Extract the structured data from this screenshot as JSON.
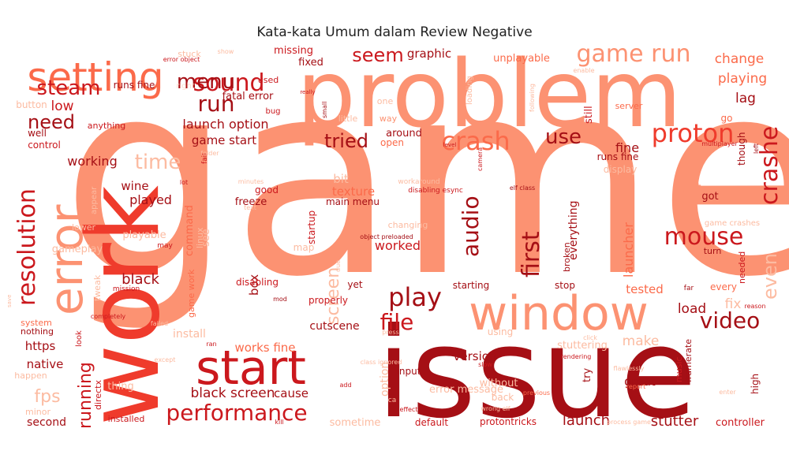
{
  "title": "Kata-kata Umum dalam Review Negative",
  "palette": {
    "darkest": "#a50f15",
    "dark": "#cb181d",
    "red": "#ef3b2c",
    "coral": "#fb6a4a",
    "salmon": "#fc9272",
    "light": "#fcbba1",
    "pale": "#fee0d2"
  },
  "words": [
    {
      "text": "game",
      "tone": "salmon"
    },
    {
      "text": "issue",
      "tone": "darkest"
    },
    {
      "text": "problem",
      "tone": "salmon"
    },
    {
      "text": "work",
      "tone": "red"
    },
    {
      "text": "window",
      "tone": "salmon"
    },
    {
      "text": "error",
      "tone": "salmon"
    },
    {
      "text": "start",
      "tone": "dark"
    },
    {
      "text": "setting",
      "tone": "coral"
    },
    {
      "text": "game run",
      "tone": "salmon"
    },
    {
      "text": "crash",
      "tone": "coral"
    },
    {
      "text": "proton",
      "tone": "red"
    },
    {
      "text": "performance",
      "tone": "dark"
    },
    {
      "text": "crashe",
      "tone": "dark"
    },
    {
      "text": "sound",
      "tone": "dark"
    },
    {
      "text": "resolution",
      "tone": "dark"
    },
    {
      "text": "mouse",
      "tone": "dark"
    },
    {
      "text": "play",
      "tone": "darkest"
    },
    {
      "text": "video",
      "tone": "darkest"
    },
    {
      "text": "file",
      "tone": "dark"
    },
    {
      "text": "run",
      "tone": "darkest"
    },
    {
      "text": "first",
      "tone": "darkest"
    },
    {
      "text": "audio",
      "tone": "darkest"
    },
    {
      "text": "menu",
      "tone": "darkest"
    },
    {
      "text": "steam",
      "tone": "dark"
    },
    {
      "text": "need",
      "tone": "darkest"
    },
    {
      "text": "time",
      "tone": "light"
    },
    {
      "text": "seem",
      "tone": "dark"
    },
    {
      "text": "tried",
      "tone": "darkest"
    },
    {
      "text": "use",
      "tone": "darkest"
    },
    {
      "text": "screen",
      "tone": "light"
    },
    {
      "text": "running",
      "tone": "dark"
    },
    {
      "text": "fps",
      "tone": "light"
    },
    {
      "text": "even",
      "tone": "light"
    },
    {
      "text": "black screen",
      "tone": "darkest"
    },
    {
      "text": "works fine",
      "tone": "coral"
    },
    {
      "text": "worked",
      "tone": "dark"
    },
    {
      "text": "launch option",
      "tone": "darkest"
    },
    {
      "text": "launch",
      "tone": "darkest"
    },
    {
      "text": "stutter",
      "tone": "darkest"
    },
    {
      "text": "version",
      "tone": "darkest"
    },
    {
      "text": "change",
      "tone": "coral"
    },
    {
      "text": "playing",
      "tone": "coral"
    },
    {
      "text": "lag",
      "tone": "darkest"
    },
    {
      "text": "fine",
      "tone": "darkest"
    },
    {
      "text": "load",
      "tone": "darkest"
    },
    {
      "text": "fix",
      "tone": "light"
    },
    {
      "text": "tested",
      "tone": "coral"
    },
    {
      "text": "make",
      "tone": "light"
    },
    {
      "text": "great",
      "tone": "darkest"
    },
    {
      "text": "graphic",
      "tone": "darkest"
    },
    {
      "text": "unplayable",
      "tone": "coral"
    },
    {
      "text": "low",
      "tone": "dark"
    },
    {
      "text": "game start",
      "tone": "darkest"
    },
    {
      "text": "working",
      "tone": "darkest"
    },
    {
      "text": "wine",
      "tone": "darkest"
    },
    {
      "text": "played",
      "tone": "darkest"
    },
    {
      "text": "black",
      "tone": "darkest"
    },
    {
      "text": "https",
      "tone": "darkest"
    },
    {
      "text": "native",
      "tone": "darkest"
    },
    {
      "text": "second",
      "tone": "darkest"
    },
    {
      "text": "cause",
      "tone": "darkest"
    },
    {
      "text": "cutscene",
      "tone": "darkest"
    },
    {
      "text": "texture",
      "tone": "coral"
    },
    {
      "text": "main menu",
      "tone": "darkest"
    },
    {
      "text": "box",
      "tone": "darkest"
    },
    {
      "text": "freeze",
      "tone": "darkest"
    },
    {
      "text": "good",
      "tone": "dark"
    },
    {
      "text": "bit",
      "tone": "light"
    },
    {
      "text": "set",
      "tone": "salmon"
    },
    {
      "text": "got",
      "tone": "darkest"
    },
    {
      "text": "launcher",
      "tone": "coral"
    },
    {
      "text": "everything",
      "tone": "darkest"
    },
    {
      "text": "option",
      "tone": "light"
    },
    {
      "text": "input",
      "tone": "darkest"
    },
    {
      "text": "around",
      "tone": "darkest"
    },
    {
      "text": "open",
      "tone": "coral"
    },
    {
      "text": "fixed",
      "tone": "darkest"
    },
    {
      "text": "missing",
      "tone": "dark"
    },
    {
      "text": "fatal error",
      "tone": "darkest"
    },
    {
      "text": "command",
      "tone": "coral"
    },
    {
      "text": "playable",
      "tone": "light"
    },
    {
      "text": "controller",
      "tone": "dark"
    },
    {
      "text": "default",
      "tone": "dark"
    },
    {
      "text": "sometime",
      "tone": "light"
    },
    {
      "text": "protontricks",
      "tone": "dark"
    },
    {
      "text": "still",
      "tone": "dark"
    },
    {
      "text": "runs fine",
      "tone": "darkest"
    },
    {
      "text": "display",
      "tone": "light"
    },
    {
      "text": "go",
      "tone": "coral"
    },
    {
      "text": "though",
      "tone": "darkest"
    },
    {
      "text": "server",
      "tone": "coral"
    },
    {
      "text": "button",
      "tone": "light"
    },
    {
      "text": "well",
      "tone": "darkest"
    },
    {
      "text": "control",
      "tone": "dark"
    },
    {
      "text": "anything",
      "tone": "dark"
    },
    {
      "text": "stuck",
      "tone": "light"
    },
    {
      "text": "used",
      "tone": "dark"
    },
    {
      "text": "lower",
      "tone": "light"
    },
    {
      "text": "system",
      "tone": "coral"
    },
    {
      "text": "nothing",
      "tone": "darkest"
    },
    {
      "text": "happen",
      "tone": "light"
    },
    {
      "text": "minor",
      "tone": "light"
    },
    {
      "text": "directx",
      "tone": "dark"
    },
    {
      "text": "installed",
      "tone": "dark"
    },
    {
      "text": "yet",
      "tone": "darkest"
    },
    {
      "text": "stop",
      "tone": "darkest"
    },
    {
      "text": "starting",
      "tone": "darkest"
    },
    {
      "text": "disabling",
      "tone": "dark"
    },
    {
      "text": "linux",
      "tone": "light"
    },
    {
      "text": "turn",
      "tone": "darkest"
    },
    {
      "text": "broken",
      "tone": "darkest"
    },
    {
      "text": "needed",
      "tone": "dark"
    },
    {
      "text": "music",
      "tone": "dark"
    },
    {
      "text": "framerate",
      "tone": "darkest"
    },
    {
      "text": "stuttering",
      "tone": "light"
    },
    {
      "text": "try",
      "tone": "darkest"
    },
    {
      "text": "back",
      "tone": "light"
    },
    {
      "text": "high",
      "tone": "darkest"
    },
    {
      "text": "using",
      "tone": "light"
    },
    {
      "text": "every",
      "tone": "coral"
    },
    {
      "text": "far",
      "tone": "darkest"
    },
    {
      "text": "properly",
      "tone": "dark"
    },
    {
      "text": "little",
      "tone": "light"
    },
    {
      "text": "way",
      "tone": "salmon"
    },
    {
      "text": "loading",
      "tone": "light"
    },
    {
      "text": "changing",
      "tone": "light"
    },
    {
      "text": "map",
      "tone": "light"
    },
    {
      "text": "tweak",
      "tone": "light"
    },
    {
      "text": "gameplay",
      "tone": "light"
    },
    {
      "text": "install",
      "tone": "light"
    },
    {
      "text": "see",
      "tone": "light"
    },
    {
      "text": "one",
      "tone": "light"
    },
    {
      "text": "appear",
      "tone": "light"
    },
    {
      "text": "startup",
      "tone": "dark"
    },
    {
      "text": "game work",
      "tone": "coral"
    },
    {
      "text": "game crashes",
      "tone": "light"
    },
    {
      "text": "error message",
      "tone": "light"
    },
    {
      "text": "without",
      "tone": "light"
    },
    {
      "text": "ca",
      "tone": "light"
    },
    {
      "text": "runs fine",
      "tone": "darkest"
    },
    {
      "text": "right",
      "tone": "pale"
    },
    {
      "text": "bug",
      "tone": "dark"
    },
    {
      "text": "show",
      "tone": "light"
    },
    {
      "text": "error object",
      "tone": "dark"
    },
    {
      "text": "really",
      "tone": "dark"
    },
    {
      "text": "small",
      "tone": "darkest"
    },
    {
      "text": "following",
      "tone": "light"
    },
    {
      "text": "enable",
      "tone": "light"
    },
    {
      "text": "level",
      "tone": "dark"
    },
    {
      "text": "camera",
      "tone": "dark"
    },
    {
      "text": "fail",
      "tone": "dark"
    },
    {
      "text": "folder",
      "tone": "light"
    },
    {
      "text": "lot",
      "tone": "dark"
    },
    {
      "text": "minutes",
      "tone": "light"
    },
    {
      "text": "workaround",
      "tone": "light"
    },
    {
      "text": "disabling esync",
      "tone": "dark"
    },
    {
      "text": "elf class",
      "tone": "darkest"
    },
    {
      "text": "text",
      "tone": "light"
    },
    {
      "text": "left",
      "tone": "darkest"
    },
    {
      "text": "multiplayer",
      "tone": "dark"
    },
    {
      "text": "may",
      "tone": "dark"
    },
    {
      "text": "due",
      "tone": "light"
    },
    {
      "text": "object preloaded",
      "tone": "darkest"
    },
    {
      "text": "mod",
      "tone": "darkest"
    },
    {
      "text": "add",
      "tone": "dark"
    },
    {
      "text": "mission",
      "tone": "dark"
    },
    {
      "text": "failed",
      "tone": "light"
    },
    {
      "text": "completely",
      "tone": "dark"
    },
    {
      "text": "ran",
      "tone": "dark"
    },
    {
      "text": "except",
      "tone": "light"
    },
    {
      "text": "press",
      "tone": "light"
    },
    {
      "text": "class ignored",
      "tone": "light"
    },
    {
      "text": "slow",
      "tone": "dark"
    },
    {
      "text": "rendering",
      "tone": "dark"
    },
    {
      "text": "flawlessly",
      "tone": "light"
    },
    {
      "text": "report",
      "tone": "coral"
    },
    {
      "text": "enter",
      "tone": "light"
    },
    {
      "text": "reason",
      "tone": "dark"
    },
    {
      "text": "previous",
      "tone": "coral"
    },
    {
      "text": "wrong elf",
      "tone": "light"
    },
    {
      "text": "effect",
      "tone": "dark"
    },
    {
      "text": "kill",
      "tone": "dark"
    },
    {
      "text": "process game",
      "tone": "light"
    },
    {
      "text": "click",
      "tone": "light"
    },
    {
      "text": "look",
      "tone": "dark"
    },
    {
      "text": "thing",
      "tone": "light"
    },
    {
      "text": "save",
      "tone": "light"
    },
    {
      "text": "proposed blackscreen",
      "tone": "pale"
    }
  ]
}
